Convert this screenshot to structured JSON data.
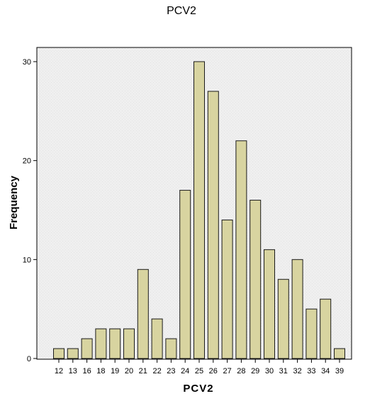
{
  "chart_data": {
    "type": "bar",
    "title": "PCV2",
    "xlabel": "PCV2",
    "ylabel": "Frequency",
    "categories": [
      "12",
      "13",
      "16",
      "18",
      "19",
      "20",
      "21",
      "22",
      "23",
      "24",
      "25",
      "26",
      "27",
      "28",
      "29",
      "30",
      "31",
      "32",
      "33",
      "34",
      "39"
    ],
    "values": [
      1,
      1,
      2,
      3,
      3,
      3,
      9,
      4,
      2,
      17,
      30,
      27,
      14,
      22,
      16,
      11,
      8,
      10,
      5,
      6,
      1
    ],
    "ylim": [
      0,
      30
    ],
    "yticks": [
      0,
      10,
      20,
      30
    ],
    "grid": false,
    "legend": "none",
    "colors": {
      "bar_fill": "#d8d4a0",
      "bar_stroke": "#1a1a1a",
      "plot_background": "#efefef",
      "axis": "#000000"
    }
  }
}
